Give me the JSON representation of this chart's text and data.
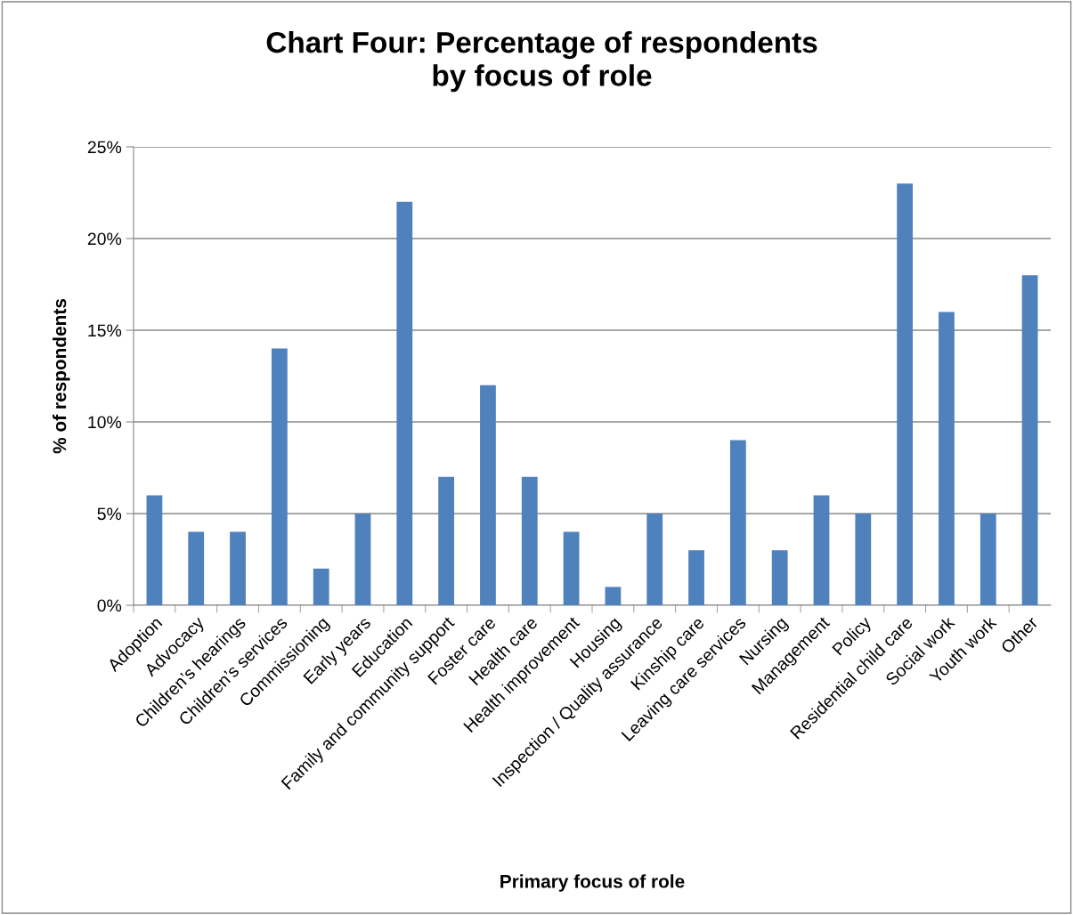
{
  "chart_data": {
    "type": "bar",
    "title": "Chart Four: Percentage of respondents\nby focus of role",
    "xlabel": "Primary focus of role",
    "ylabel": "% of respondents",
    "categories": [
      "Adoption",
      "Advocacy",
      "Children’s hearings",
      "Children’s services",
      "Commissioning",
      "Early years",
      "Education",
      "Family and community support",
      "Foster care",
      "Health care",
      "Health improvement",
      "Housing",
      "Inspection / Quality assurance",
      "Kinship care",
      "Leaving care services",
      "Nursing",
      "Management",
      "Policy",
      "Residential child care",
      "Social work",
      "Youth work",
      "Other"
    ],
    "values": [
      6,
      4,
      4,
      14,
      2,
      5,
      22,
      7,
      12,
      7,
      4,
      1,
      5,
      3,
      9,
      3,
      6,
      5,
      23,
      16,
      5,
      18
    ],
    "color": "#4f81bd",
    "ylim": [
      0,
      25
    ],
    "yticks": [
      {
        "value": 0,
        "label": "0%"
      },
      {
        "value": 5,
        "label": "5%"
      },
      {
        "value": 10,
        "label": "10%"
      },
      {
        "value": 15,
        "label": "15%"
      },
      {
        "value": 20,
        "label": "20%"
      },
      {
        "value": 25,
        "label": "25%"
      }
    ],
    "grid": "y",
    "legend": false
  }
}
